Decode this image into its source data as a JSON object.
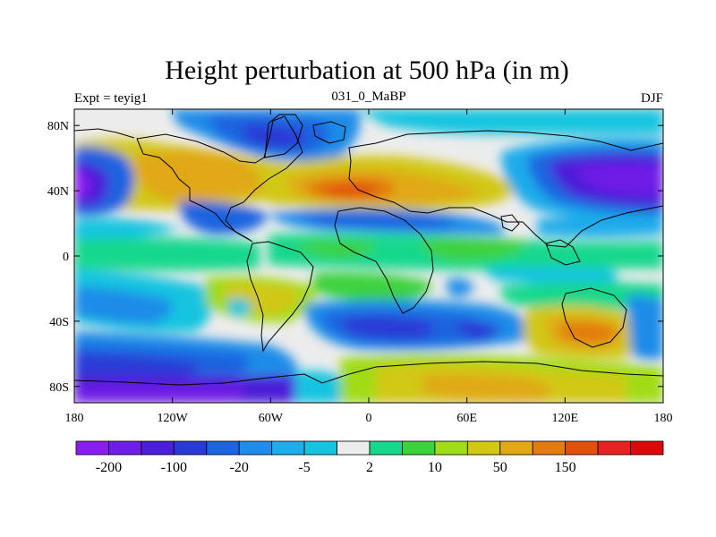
{
  "title": "Height perturbation at 500 hPa (in m)",
  "left_label": "Expt = teyig1",
  "center_label": "031_0_MaBP",
  "right_label": "DJF",
  "x_ticks": [
    "180",
    "120W",
    "60W",
    "0",
    "60E",
    "120E",
    "180"
  ],
  "y_ticks": [
    "80N",
    "40N",
    "0",
    "40S",
    "80S"
  ],
  "colorbar": {
    "colors": [
      "#8a1ef0",
      "#6e1ee6",
      "#4b1ed8",
      "#2a3ad6",
      "#1e64e0",
      "#1e8ce8",
      "#1eacea",
      "#16c4e0",
      "#ececec",
      "#16d88c",
      "#3cd23c",
      "#a0dc18",
      "#d2c814",
      "#e0a812",
      "#e27c10",
      "#e2500e",
      "#e62222",
      "#dc0a0a"
    ],
    "labels": [
      "-200",
      "-100",
      "-20",
      "-5",
      "2",
      "10",
      "50",
      "150"
    ]
  }
}
